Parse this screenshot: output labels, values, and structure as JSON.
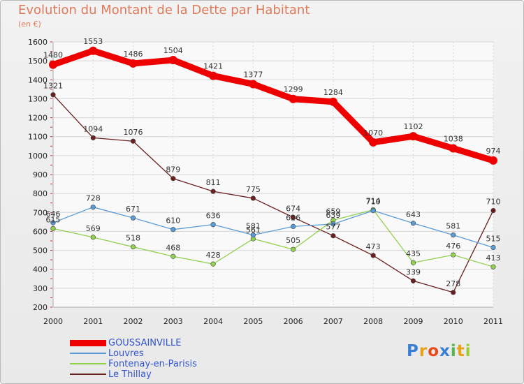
{
  "title": "Evolution du Montant de la Dette par Habitant",
  "unit_label": "(en €)",
  "logo": "Proxiti",
  "colors": {
    "title": "#e07a5a",
    "grid": "#d6d6d6",
    "legend_text": "#3356cc"
  },
  "chart_data": {
    "type": "line",
    "title": "Evolution du Montant de la Dette par Habitant",
    "ylabel": "(en €)",
    "xlabel": "",
    "x": [
      "2000",
      "2001",
      "2002",
      "2003",
      "2004",
      "2005",
      "2006",
      "2007",
      "2008",
      "2009",
      "2010",
      "2011"
    ],
    "ylim": [
      200,
      1600
    ],
    "yticks": [
      200,
      300,
      400,
      500,
      600,
      700,
      800,
      900,
      1000,
      1100,
      1200,
      1300,
      1400,
      1500,
      1600
    ],
    "grid": true,
    "legend": "bottom-left",
    "series": [
      {
        "name": "GOUSSAINVILLE",
        "color": "#ee0000",
        "values": [
          1480,
          1553,
          1486,
          1504,
          1421,
          1377,
          1299,
          1284,
          1070,
          1102,
          1038,
          974
        ]
      },
      {
        "name": "Louvres",
        "color": "#5b9bd5",
        "values": [
          646,
          728,
          671,
          610,
          636,
          581,
          626,
          639,
          710,
          643,
          581,
          515
        ]
      },
      {
        "name": "Fontenay-en-Parisis",
        "color": "#92d050",
        "values": [
          615,
          569,
          518,
          468,
          428,
          561,
          505,
          659,
          714,
          435,
          476,
          413
        ]
      },
      {
        "name": "Le Thillay",
        "color": "#6b1f1f",
        "values": [
          1321,
          1094,
          1076,
          879,
          811,
          775,
          674,
          577,
          473,
          339,
          278,
          710
        ]
      }
    ]
  }
}
